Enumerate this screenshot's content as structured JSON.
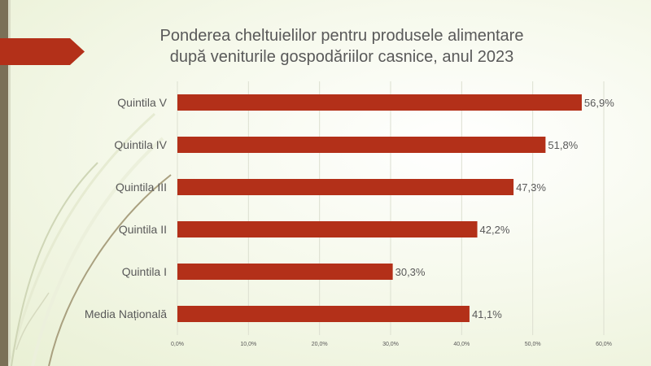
{
  "slide": {
    "title_line1": "Ponderea cheltuielilor pentru produsele alimentare",
    "title_line2": "după veniturile gospodăriilor casnice, anul 2023"
  },
  "colors": {
    "bar": "#b33019",
    "accent_tab": "#b33019",
    "left_band": "#7a7057",
    "text": "#595959"
  },
  "chart_data": {
    "type": "bar",
    "orientation": "horizontal",
    "title": "Ponderea cheltuielilor pentru produsele alimentare după veniturile gospodăriilor casnice, anul 2023",
    "categories": [
      "Quintila V",
      "Quintila IV",
      "Quintila III",
      "Quintila II",
      "Quintila I",
      "Media Națională"
    ],
    "values": [
      56.9,
      51.8,
      47.3,
      42.2,
      30.3,
      41.1
    ],
    "value_labels": [
      "56,9%",
      "51,8%",
      "47,3%",
      "42,2%",
      "30,3%",
      "41,1%"
    ],
    "xlim": [
      0,
      60
    ],
    "x_ticks": [
      0,
      10,
      20,
      30,
      40,
      50,
      60
    ],
    "x_tick_labels": [
      "0,0%",
      "10,0%",
      "20,0%",
      "30,0%",
      "40,0%",
      "50,0%",
      "60,0%"
    ],
    "xlabel": "",
    "ylabel": "",
    "grid": true,
    "legend": "none"
  }
}
